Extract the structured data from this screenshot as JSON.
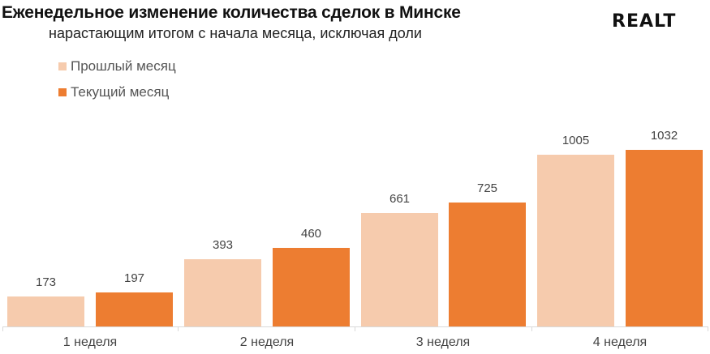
{
  "header": {
    "title": "Еженедельное изменение количества сделок в Минске",
    "subtitle": "нарастающим итогом с начала месяца, исключая доли",
    "logo": "REALT"
  },
  "legend": [
    {
      "label": "Прошлый месяц",
      "color": "#f6cbad"
    },
    {
      "label": "Текущий месяц",
      "color": "#ed7d31"
    }
  ],
  "chart_data": {
    "type": "bar",
    "title": "Еженедельное изменение количества сделок в Минске",
    "subtitle": "нарастающим итогом с начала месяца, исключая доли",
    "categories": [
      "1 неделя",
      "2 неделя",
      "3 неделя",
      "4 неделя"
    ],
    "series": [
      {
        "name": "Прошлый месяц",
        "color": "#f6cbad",
        "values": [
          173,
          393,
          661,
          1005
        ]
      },
      {
        "name": "Текущий месяц",
        "color": "#ed7d31",
        "values": [
          197,
          460,
          725,
          1032
        ]
      }
    ],
    "xlabel": "",
    "ylabel": "",
    "ylim": [
      0,
      1100
    ],
    "grid": false,
    "legend_position": "top-left",
    "data_labels": true
  },
  "labels": {
    "b0": "173",
    "b1": "197",
    "b2": "393",
    "b3": "460",
    "b4": "661",
    "b5": "725",
    "b6": "1005",
    "b7": "1032"
  }
}
